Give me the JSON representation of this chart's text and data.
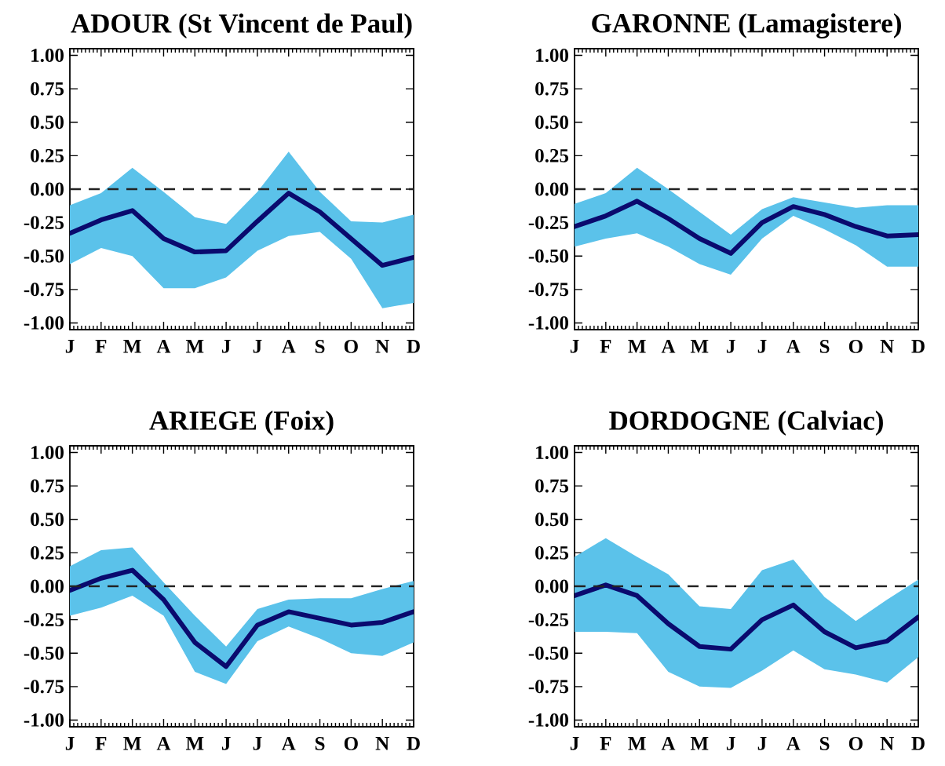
{
  "chart_data": [
    {
      "type": "line",
      "title": "ADOUR (St Vincent de Paul)",
      "categories": [
        "J",
        "F",
        "M",
        "A",
        "M",
        "J",
        "J",
        "A",
        "S",
        "O",
        "N",
        "D"
      ],
      "series": [
        {
          "color": "#0a0a6e",
          "values": [
            -0.33,
            -0.23,
            -0.16,
            -0.37,
            -0.47,
            -0.46,
            -0.24,
            -0.03,
            -0.17,
            -0.37,
            -0.57,
            -0.51
          ],
          "upper": [
            -0.12,
            -0.03,
            0.16,
            -0.02,
            -0.21,
            -0.26,
            -0.02,
            0.28,
            -0.02,
            -0.24,
            -0.25,
            -0.19
          ],
          "lower": [
            -0.56,
            -0.44,
            -0.5,
            -0.74,
            -0.74,
            -0.66,
            -0.46,
            -0.35,
            -0.32,
            -0.52,
            -0.89,
            -0.85
          ]
        }
      ],
      "ylim": [
        -1.05,
        1.05
      ],
      "yticks": [
        {
          "value": -1,
          "label": "-1.00"
        },
        {
          "value": -0.75,
          "label": "-0.75"
        },
        {
          "value": -0.5,
          "label": "-0.50"
        },
        {
          "value": -0.25,
          "label": "-0.25"
        },
        {
          "value": 0,
          "label": "0.00"
        },
        {
          "value": 0.25,
          "label": "0.25"
        },
        {
          "value": 0.5,
          "label": "0.50"
        },
        {
          "value": 0.75,
          "label": "0.75"
        },
        {
          "value": 1,
          "label": "1.00"
        }
      ],
      "ref_lines": [
        {
          "axis": "y",
          "value": 0,
          "line_style": "dashed",
          "color": "#222222"
        }
      ]
    },
    {
      "type": "line",
      "title": "GARONNE (Lamagistere)",
      "categories": [
        "J",
        "F",
        "M",
        "A",
        "M",
        "J",
        "J",
        "A",
        "S",
        "O",
        "N",
        "D"
      ],
      "series": [
        {
          "color": "#0a0a6e",
          "values": [
            -0.28,
            -0.2,
            -0.09,
            -0.22,
            -0.37,
            -0.48,
            -0.25,
            -0.13,
            -0.19,
            -0.28,
            -0.35,
            -0.34
          ],
          "upper": [
            -0.11,
            -0.03,
            0.16,
            0.0,
            -0.17,
            -0.34,
            -0.15,
            -0.06,
            -0.1,
            -0.14,
            -0.12,
            -0.12
          ],
          "lower": [
            -0.43,
            -0.37,
            -0.33,
            -0.43,
            -0.56,
            -0.64,
            -0.37,
            -0.2,
            -0.3,
            -0.42,
            -0.58,
            -0.58
          ]
        }
      ],
      "ylim": [
        -1.05,
        1.05
      ],
      "yticks": [
        {
          "value": -1,
          "label": "-1.00"
        },
        {
          "value": -0.75,
          "label": "-0.75"
        },
        {
          "value": -0.5,
          "label": "-0.50"
        },
        {
          "value": -0.25,
          "label": "-0.25"
        },
        {
          "value": 0,
          "label": "0.00"
        },
        {
          "value": 0.25,
          "label": "0.25"
        },
        {
          "value": 0.5,
          "label": "0.50"
        },
        {
          "value": 0.75,
          "label": "0.75"
        },
        {
          "value": 1,
          "label": "1.00"
        }
      ],
      "ref_lines": [
        {
          "axis": "y",
          "value": 0,
          "line_style": "dashed",
          "color": "#222222"
        }
      ]
    },
    {
      "type": "line",
      "title": "ARIEGE (Foix)",
      "categories": [
        "J",
        "F",
        "M",
        "A",
        "M",
        "J",
        "J",
        "A",
        "S",
        "O",
        "N",
        "D"
      ],
      "series": [
        {
          "color": "#0a0a6e",
          "values": [
            -0.03,
            0.06,
            0.12,
            -0.1,
            -0.42,
            -0.6,
            -0.29,
            -0.19,
            -0.24,
            -0.29,
            -0.27,
            -0.19
          ],
          "upper": [
            0.15,
            0.27,
            0.29,
            0.03,
            -0.22,
            -0.45,
            -0.17,
            -0.1,
            -0.09,
            -0.09,
            -0.02,
            0.04
          ],
          "lower": [
            -0.22,
            -0.16,
            -0.07,
            -0.22,
            -0.64,
            -0.73,
            -0.41,
            -0.3,
            -0.39,
            -0.5,
            -0.52,
            -0.42
          ]
        }
      ],
      "ylim": [
        -1.05,
        1.05
      ],
      "yticks": [
        {
          "value": -1,
          "label": "-1.00"
        },
        {
          "value": -0.75,
          "label": "-0.75"
        },
        {
          "value": -0.5,
          "label": "-0.50"
        },
        {
          "value": -0.25,
          "label": "-0.25"
        },
        {
          "value": 0,
          "label": "0.00"
        },
        {
          "value": 0.25,
          "label": "0.25"
        },
        {
          "value": 0.5,
          "label": "0.50"
        },
        {
          "value": 0.75,
          "label": "0.75"
        },
        {
          "value": 1,
          "label": "1.00"
        }
      ],
      "ref_lines": [
        {
          "axis": "y",
          "value": 0,
          "line_style": "dashed",
          "color": "#222222"
        }
      ]
    },
    {
      "type": "line",
      "title": "DORDOGNE (Calviac)",
      "categories": [
        "J",
        "F",
        "M",
        "A",
        "M",
        "J",
        "J",
        "A",
        "S",
        "O",
        "N",
        "D"
      ],
      "series": [
        {
          "color": "#0a0a6e",
          "values": [
            -0.07,
            0.01,
            -0.07,
            -0.28,
            -0.45,
            -0.47,
            -0.25,
            -0.14,
            -0.34,
            -0.46,
            -0.41,
            -0.23
          ],
          "upper": [
            0.22,
            0.36,
            0.22,
            0.09,
            -0.15,
            -0.17,
            0.12,
            0.2,
            -0.08,
            -0.26,
            -0.1,
            0.05
          ],
          "lower": [
            -0.34,
            -0.34,
            -0.35,
            -0.64,
            -0.75,
            -0.76,
            -0.63,
            -0.48,
            -0.62,
            -0.66,
            -0.72,
            -0.53
          ]
        }
      ],
      "ylim": [
        -1.05,
        1.05
      ],
      "yticks": [
        {
          "value": -1,
          "label": "-1.00"
        },
        {
          "value": -0.75,
          "label": "-0.75"
        },
        {
          "value": -0.5,
          "label": "-0.50"
        },
        {
          "value": -0.25,
          "label": "-0.25"
        },
        {
          "value": 0,
          "label": "0.00"
        },
        {
          "value": 0.25,
          "label": "0.25"
        },
        {
          "value": 0.5,
          "label": "0.50"
        },
        {
          "value": 0.75,
          "label": "0.75"
        },
        {
          "value": 1,
          "label": "1.00"
        }
      ],
      "ref_lines": [
        {
          "axis": "y",
          "value": 0,
          "line_style": "dashed",
          "color": "#222222"
        }
      ]
    }
  ]
}
